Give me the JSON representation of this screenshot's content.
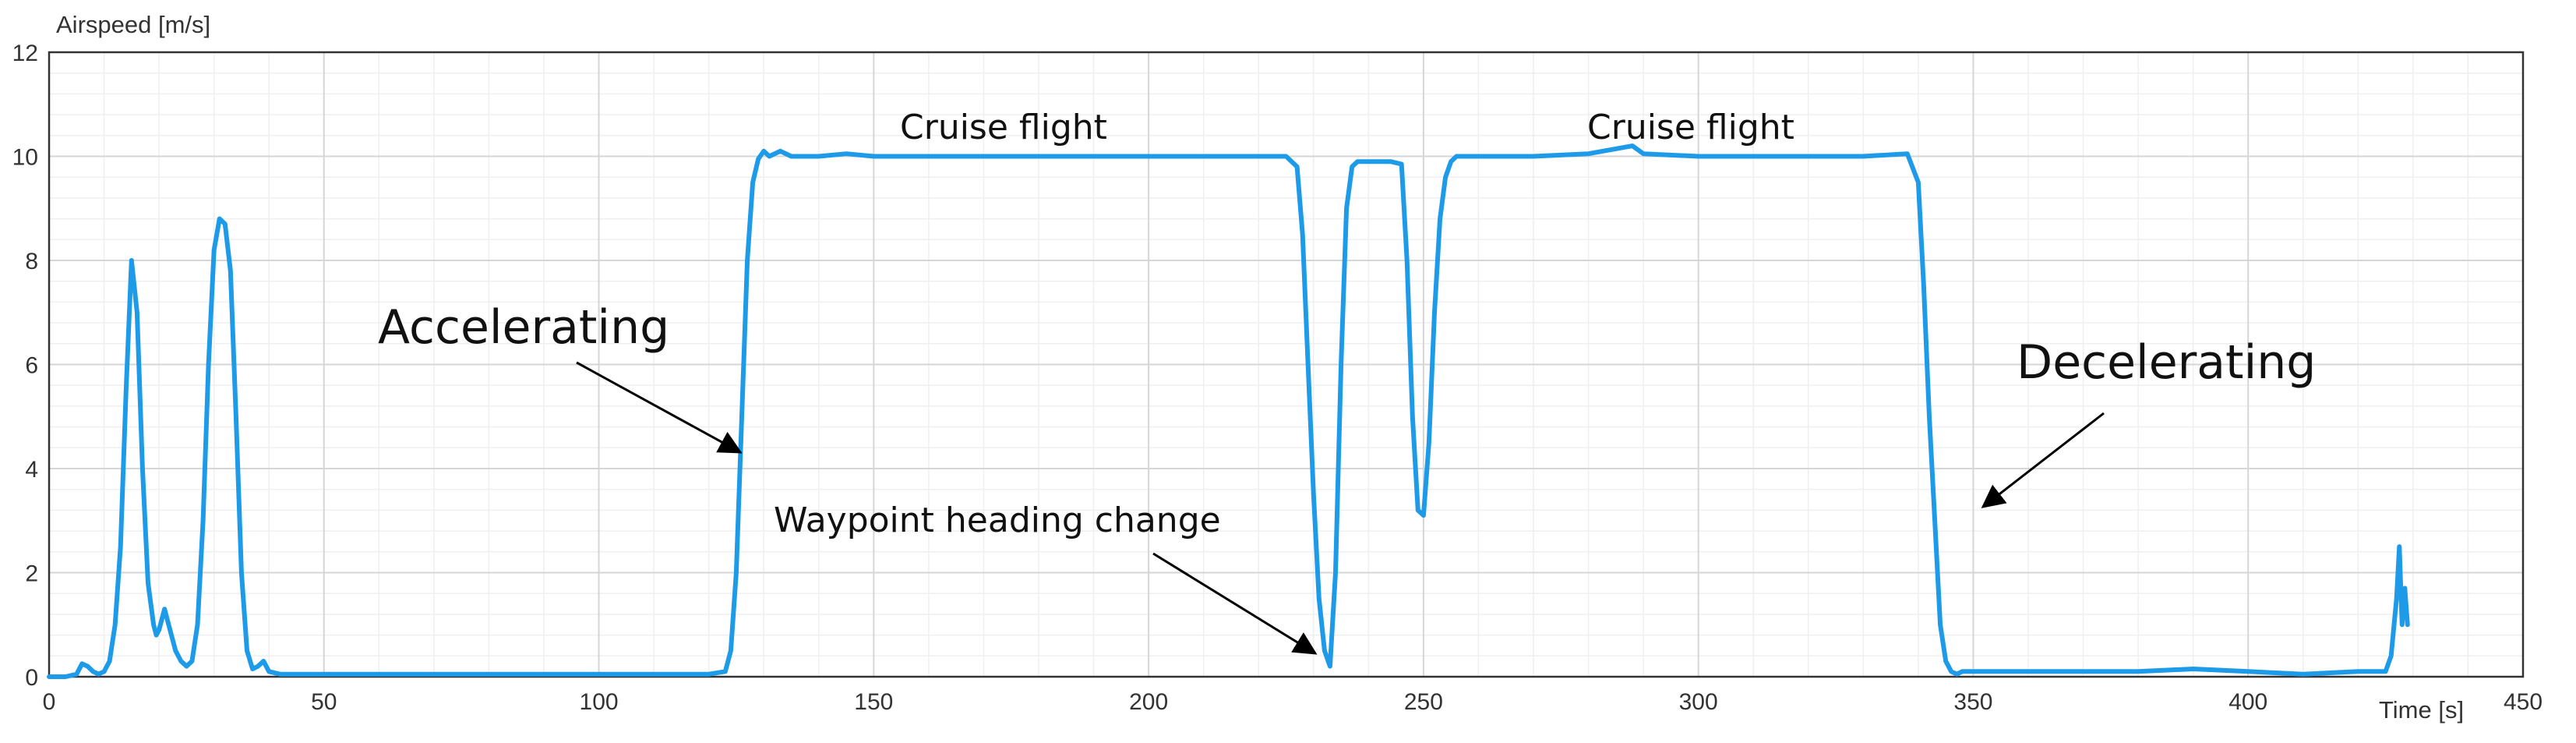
{
  "chart_data": {
    "type": "line",
    "title": "",
    "xlabel": "Time [s]",
    "ylabel": "Airspeed [m/s]",
    "xlim": [
      0,
      450
    ],
    "ylim": [
      0,
      12
    ],
    "xticks": [
      0,
      50,
      100,
      150,
      200,
      250,
      300,
      350,
      400,
      450
    ],
    "yticks": [
      0,
      2,
      4,
      6,
      8,
      10,
      12
    ],
    "grid": true,
    "line_color": "#1E9BE8",
    "annotations": [
      {
        "text": "Accelerating",
        "size": "large",
        "target": [
          127,
          4.3
        ]
      },
      {
        "text": "Cruise flight",
        "size": "small"
      },
      {
        "text": "Waypoint heading change",
        "size": "small",
        "target": [
          233,
          0.3
        ]
      },
      {
        "text": "Cruise flight",
        "size": "small"
      },
      {
        "text": "Decelerating",
        "size": "large",
        "target": [
          343,
          3.3
        ]
      }
    ],
    "series": [
      {
        "x": [
          0,
          3,
          5,
          6,
          7,
          8,
          9,
          10,
          11,
          12,
          13,
          14,
          15,
          16,
          17,
          18,
          19,
          19.5,
          20,
          21,
          22,
          23,
          24,
          25,
          26,
          27,
          28,
          29,
          30,
          31,
          32,
          33,
          34,
          35,
          36,
          37,
          38,
          39,
          40,
          42,
          44,
          50,
          60,
          70,
          80,
          90,
          100,
          110,
          120,
          123,
          124,
          125,
          126,
          127,
          128,
          129,
          130,
          131,
          133,
          135,
          140,
          145,
          150,
          160,
          170,
          180,
          190,
          200,
          210,
          220,
          225,
          227,
          228,
          229,
          230,
          231,
          232,
          233,
          234,
          235,
          236,
          237,
          238,
          240,
          242,
          244,
          246,
          247,
          248,
          249,
          250,
          251,
          252,
          253,
          254,
          255,
          256,
          257,
          258,
          260,
          265,
          270,
          280,
          288,
          290,
          300,
          310,
          320,
          330,
          338,
          340,
          341,
          342,
          343,
          344,
          345,
          346,
          347,
          348,
          350,
          360,
          370,
          380,
          390,
          400,
          410,
          420,
          425,
          426,
          427,
          427.5,
          428,
          428.5,
          429
        ],
        "y": [
          0,
          0,
          0.05,
          0.25,
          0.2,
          0.1,
          0.05,
          0.1,
          0.3,
          1.0,
          2.5,
          5.5,
          8.0,
          7.0,
          4.0,
          1.8,
          1.0,
          0.8,
          0.9,
          1.3,
          0.9,
          0.5,
          0.3,
          0.2,
          0.3,
          1.0,
          3.0,
          6.0,
          8.2,
          8.8,
          8.7,
          7.8,
          5.0,
          2.0,
          0.5,
          0.15,
          0.2,
          0.3,
          0.1,
          0.05,
          0.05,
          0.05,
          0.05,
          0.05,
          0.05,
          0.05,
          0.05,
          0.05,
          0.05,
          0.1,
          0.5,
          2.0,
          5.0,
          8.0,
          9.5,
          9.95,
          10.1,
          10.0,
          10.1,
          10.0,
          10.0,
          10.05,
          10.0,
          10.0,
          10.0,
          10.0,
          10.0,
          10.0,
          10.0,
          10.0,
          10.0,
          9.8,
          8.5,
          6.0,
          3.5,
          1.5,
          0.5,
          0.2,
          2.0,
          6.0,
          9.0,
          9.8,
          9.9,
          9.9,
          9.9,
          9.9,
          9.85,
          8.0,
          5.0,
          3.2,
          3.1,
          4.5,
          7.0,
          8.8,
          9.6,
          9.9,
          10.0,
          10.0,
          10.0,
          10.0,
          10.0,
          10.0,
          10.05,
          10.2,
          10.05,
          10.0,
          10.0,
          10.0,
          10.0,
          10.05,
          9.5,
          7.5,
          5.0,
          3.0,
          1.0,
          0.3,
          0.1,
          0.05,
          0.1,
          0.1,
          0.1,
          0.1,
          0.1,
          0.15,
          0.1,
          0.05,
          0.1,
          0.1,
          0.4,
          1.5,
          2.5,
          1.0,
          1.7,
          1.0
        ]
      }
    ]
  }
}
